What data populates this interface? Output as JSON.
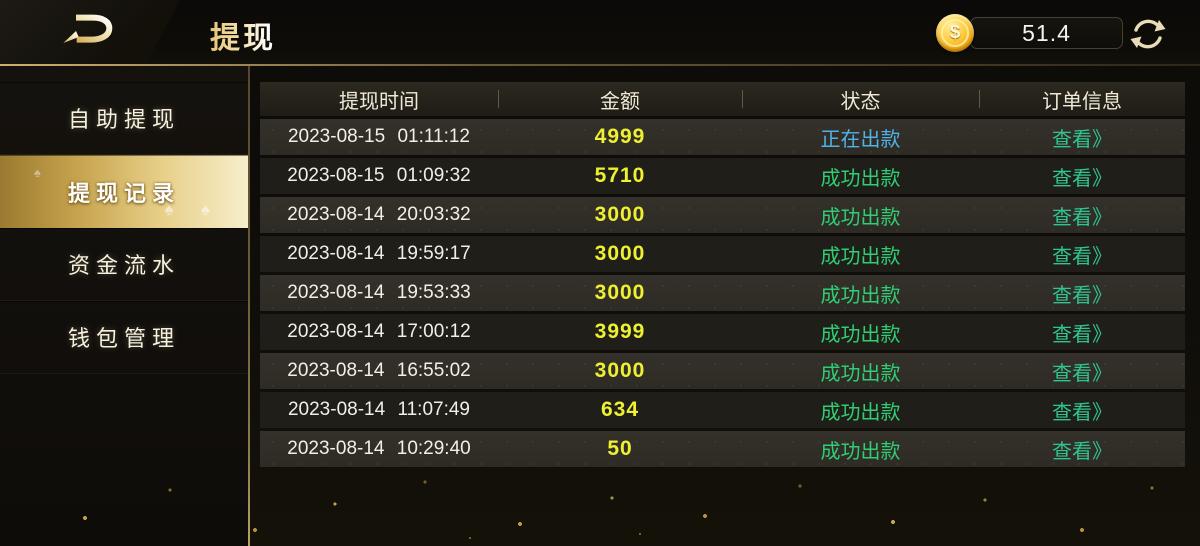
{
  "header": {
    "title": "提现",
    "coin_symbol": "$",
    "balance": "51.4"
  },
  "sidebar": {
    "items": [
      {
        "label": "自助提现",
        "selected": false
      },
      {
        "label": "提现记录",
        "selected": true
      },
      {
        "label": "资金流水",
        "selected": false
      },
      {
        "label": "钱包管理",
        "selected": false
      }
    ]
  },
  "table": {
    "columns": [
      "提现时间",
      "金额",
      "状态",
      "订单信息"
    ],
    "rows": [
      {
        "time": "2023-08-15 01:11:12",
        "amount": "4999",
        "status": "正在出款",
        "status_type": "processing",
        "action": "查看》"
      },
      {
        "time": "2023-08-15 01:09:32",
        "amount": "5710",
        "status": "成功出款",
        "status_type": "success",
        "action": "查看》"
      },
      {
        "time": "2023-08-14 20:03:32",
        "amount": "3000",
        "status": "成功出款",
        "status_type": "success",
        "action": "查看》"
      },
      {
        "time": "2023-08-14 19:59:17",
        "amount": "3000",
        "status": "成功出款",
        "status_type": "success",
        "action": "查看》"
      },
      {
        "time": "2023-08-14 19:53:33",
        "amount": "3000",
        "status": "成功出款",
        "status_type": "success",
        "action": "查看》"
      },
      {
        "time": "2023-08-14 17:00:12",
        "amount": "3999",
        "status": "成功出款",
        "status_type": "success",
        "action": "查看》"
      },
      {
        "time": "2023-08-14 16:55:02",
        "amount": "3000",
        "status": "成功出款",
        "status_type": "success",
        "action": "查看》"
      },
      {
        "time": "2023-08-14 11:07:49",
        "amount": "634",
        "status": "成功出款",
        "status_type": "success",
        "action": "查看》"
      },
      {
        "time": "2023-08-14 10:29:40",
        "amount": "50",
        "status": "成功出款",
        "status_type": "success",
        "action": "查看》"
      }
    ]
  },
  "colors": {
    "accent_gold": "#d8b874",
    "amount_yellow": "#eef032",
    "status_processing_blue": "#4fb3e8",
    "status_success_green": "#2fce74",
    "link_green": "#2fc591",
    "selected_item_gradient": [
      "#9a7a30",
      "#f7eecb"
    ]
  },
  "icons": {
    "logo": "app-logo",
    "coin": "gold-dollar-coin",
    "refresh": "circular-refresh-arrows"
  }
}
